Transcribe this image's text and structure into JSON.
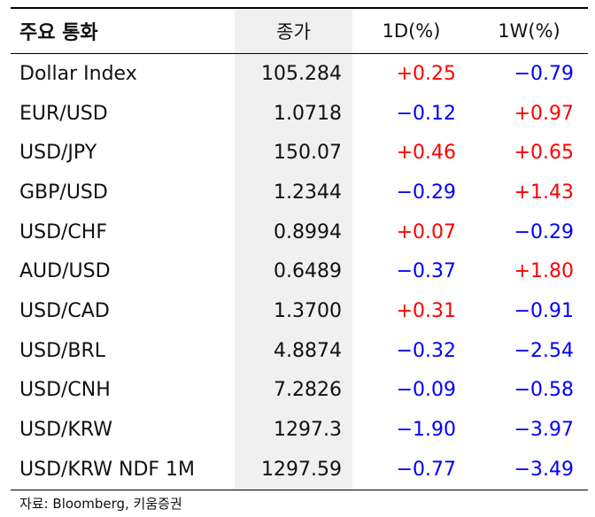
{
  "table": {
    "headers": [
      "주요 통화",
      "종가",
      "1D(%)",
      "1W(%)"
    ],
    "rows": [
      {
        "name": "Dollar Index",
        "close": "105.284",
        "d1": "+0.25",
        "w1": "−0.79"
      },
      {
        "name": "EUR/USD",
        "close": "1.0718",
        "d1": "−0.12",
        "w1": "+0.97"
      },
      {
        "name": "USD/JPY",
        "close": "150.07",
        "d1": "+0.46",
        "w1": "+0.65"
      },
      {
        "name": "GBP/USD",
        "close": "1.2344",
        "d1": "−0.29",
        "w1": "+1.43"
      },
      {
        "name": "USD/CHF",
        "close": "0.8994",
        "d1": "+0.07",
        "w1": "−0.29"
      },
      {
        "name": "AUD/USD",
        "close": "0.6489",
        "d1": "−0.37",
        "w1": "+1.80"
      },
      {
        "name": "USD/CAD",
        "close": "1.3700",
        "d1": "+0.31",
        "w1": "−0.91"
      },
      {
        "name": "USD/BRL",
        "close": "4.8874",
        "d1": "−0.32",
        "w1": "−2.54"
      },
      {
        "name": "USD/CNH",
        "close": "7.2826",
        "d1": "−0.09",
        "w1": "−0.58"
      },
      {
        "name": "USD/KRW",
        "close": "1297.3",
        "d1": "−1.90",
        "w1": "−3.97"
      },
      {
        "name": "USD/KRW NDF 1M",
        "close": "1297.59",
        "d1": "−0.77",
        "w1": "−3.49"
      }
    ]
  },
  "source": "자료: Bloomberg, 키움증권",
  "colors": {
    "positive": "#ff0000",
    "negative": "#0000ff",
    "shaded": "#f0f0f0"
  }
}
